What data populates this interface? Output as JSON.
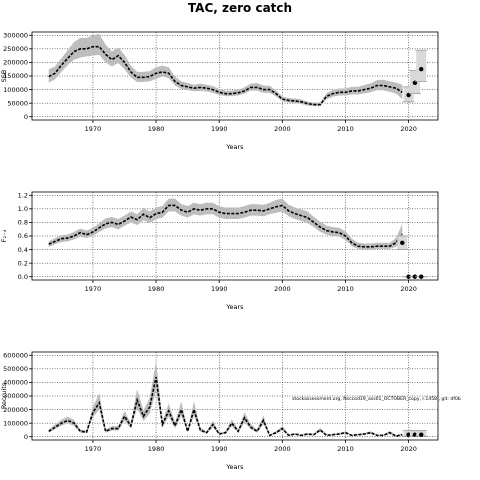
{
  "title": "TAC, zero catch",
  "annotation": "stockassessment.org, Nsccod19_ass01_OCTOBER_copy, r.1458 , git: df0b",
  "chart_data": [
    {
      "type": "line",
      "ylabel": "SSB",
      "xlabel": "Years",
      "xlim": [
        1963,
        2022
      ],
      "ylim": [
        0,
        300000
      ],
      "x_ticks": [
        1970,
        1980,
        1990,
        2000,
        2010,
        2020
      ],
      "y_ticks": [
        0,
        50000,
        100000,
        150000,
        200000,
        250000,
        300000
      ],
      "grid": true,
      "x": [
        1963,
        1964,
        1965,
        1966,
        1967,
        1968,
        1969,
        1970,
        1971,
        1972,
        1973,
        1974,
        1975,
        1976,
        1977,
        1978,
        1979,
        1980,
        1981,
        1982,
        1983,
        1984,
        1985,
        1986,
        1987,
        1988,
        1989,
        1990,
        1991,
        1992,
        1993,
        1994,
        1995,
        1996,
        1997,
        1998,
        1999,
        2000,
        2001,
        2002,
        2003,
        2004,
        2005,
        2006,
        2007,
        2008,
        2009,
        2010,
        2011,
        2012,
        2013,
        2014,
        2015,
        2016,
        2017,
        2018,
        2019
      ],
      "estimate": [
        148000,
        160000,
        190000,
        215000,
        240000,
        250000,
        250000,
        258000,
        258000,
        230000,
        210000,
        225000,
        200000,
        165000,
        145000,
        145000,
        148000,
        160000,
        165000,
        160000,
        130000,
        115000,
        110000,
        105000,
        108000,
        105000,
        100000,
        90000,
        85000,
        85000,
        88000,
        95000,
        108000,
        108000,
        100000,
        100000,
        85000,
        65000,
        60000,
        58000,
        55000,
        48000,
        45000,
        45000,
        75000,
        85000,
        90000,
        90000,
        95000,
        95000,
        100000,
        105000,
        115000,
        115000,
        110000,
        105000,
        90000
      ],
      "lower": [
        125000,
        138000,
        165000,
        190000,
        210000,
        218000,
        222000,
        225000,
        228000,
        200000,
        185000,
        198000,
        175000,
        145000,
        128000,
        128000,
        130000,
        140000,
        148000,
        142000,
        115000,
        102000,
        98000,
        94000,
        95000,
        93000,
        88000,
        80000,
        76000,
        76000,
        78000,
        85000,
        96000,
        96000,
        88000,
        88000,
        75000,
        57000,
        52000,
        50000,
        47000,
        41000,
        39000,
        39000,
        65000,
        74000,
        78000,
        78000,
        82000,
        82000,
        86000,
        90000,
        98000,
        97000,
        92000,
        85000,
        65000
      ],
      "upper": [
        175000,
        185000,
        215000,
        245000,
        275000,
        290000,
        290000,
        300000,
        305000,
        265000,
        240000,
        255000,
        228000,
        188000,
        165000,
        165000,
        168000,
        182000,
        188000,
        182000,
        148000,
        130000,
        124000,
        118000,
        122000,
        118000,
        113000,
        102000,
        96000,
        96000,
        100000,
        108000,
        122000,
        124000,
        115000,
        114000,
        97000,
        74000,
        69000,
        67000,
        64000,
        56000,
        52000,
        52000,
        87000,
        98000,
        104000,
        104000,
        110000,
        110000,
        117000,
        123000,
        135000,
        136000,
        130000,
        126000,
        118000
      ],
      "forecast_x": [
        2020,
        2021,
        2022
      ],
      "forecast_median": [
        80000,
        125000,
        175000
      ],
      "forecast_low": [
        55000,
        85000,
        130000
      ],
      "forecast_high": [
        110000,
        170000,
        245000
      ]
    },
    {
      "type": "line",
      "ylabel": "F₂₋₄",
      "xlabel": "Years",
      "xlim": [
        1963,
        2022
      ],
      "ylim": [
        0,
        1.2
      ],
      "x_ticks": [
        1970,
        1980,
        1990,
        2000,
        2010,
        2020
      ],
      "y_ticks": [
        0.0,
        0.2,
        0.4,
        0.6,
        0.8,
        1.0,
        1.2
      ],
      "grid": true,
      "x": [
        1963,
        1964,
        1965,
        1966,
        1967,
        1968,
        1969,
        1970,
        1971,
        1972,
        1973,
        1974,
        1975,
        1976,
        1977,
        1978,
        1979,
        1980,
        1981,
        1982,
        1983,
        1984,
        1985,
        1986,
        1987,
        1988,
        1989,
        1990,
        1991,
        1992,
        1993,
        1994,
        1995,
        1996,
        1997,
        1998,
        1999,
        2000,
        2001,
        2002,
        2003,
        2004,
        2005,
        2006,
        2007,
        2008,
        2009,
        2010,
        2011,
        2012,
        2013,
        2014,
        2015,
        2016,
        2017,
        2018,
        2019
      ],
      "estimate": [
        0.48,
        0.52,
        0.56,
        0.57,
        0.6,
        0.65,
        0.62,
        0.66,
        0.72,
        0.78,
        0.8,
        0.77,
        0.82,
        0.88,
        0.84,
        0.92,
        0.87,
        0.93,
        0.95,
        1.05,
        1.05,
        0.98,
        0.95,
        1.0,
        0.98,
        1.0,
        1.0,
        0.95,
        0.93,
        0.93,
        0.93,
        0.95,
        0.98,
        0.98,
        0.97,
        1.0,
        1.03,
        1.05,
        0.97,
        0.93,
        0.9,
        0.87,
        0.8,
        0.73,
        0.68,
        0.66,
        0.65,
        0.6,
        0.5,
        0.45,
        0.44,
        0.44,
        0.45,
        0.45,
        0.45,
        0.5,
        0.63
      ],
      "lower": [
        0.44,
        0.48,
        0.51,
        0.52,
        0.55,
        0.59,
        0.57,
        0.6,
        0.66,
        0.71,
        0.73,
        0.7,
        0.75,
        0.8,
        0.76,
        0.83,
        0.79,
        0.85,
        0.87,
        0.96,
        0.96,
        0.9,
        0.87,
        0.92,
        0.9,
        0.92,
        0.92,
        0.87,
        0.85,
        0.85,
        0.85,
        0.87,
        0.9,
        0.9,
        0.89,
        0.92,
        0.94,
        0.96,
        0.89,
        0.85,
        0.82,
        0.79,
        0.73,
        0.66,
        0.62,
        0.6,
        0.59,
        0.54,
        0.45,
        0.41,
        0.4,
        0.4,
        0.41,
        0.41,
        0.41,
        0.44,
        0.5
      ],
      "upper": [
        0.52,
        0.57,
        0.61,
        0.62,
        0.66,
        0.71,
        0.68,
        0.72,
        0.79,
        0.86,
        0.88,
        0.85,
        0.9,
        0.96,
        0.92,
        1.01,
        0.96,
        1.02,
        1.04,
        1.15,
        1.15,
        1.07,
        1.04,
        1.09,
        1.07,
        1.09,
        1.09,
        1.04,
        1.02,
        1.02,
        1.02,
        1.04,
        1.07,
        1.07,
        1.06,
        1.09,
        1.13,
        1.15,
        1.06,
        1.02,
        0.99,
        0.96,
        0.88,
        0.81,
        0.75,
        0.73,
        0.72,
        0.67,
        0.56,
        0.5,
        0.49,
        0.49,
        0.5,
        0.5,
        0.5,
        0.57,
        0.78
      ],
      "forecast_x": [
        2019,
        2020,
        2021,
        2022
      ],
      "forecast_median": [
        0.5,
        0.0,
        0.0,
        0.0
      ],
      "forecast_low": [
        0.4,
        0.0,
        0.0,
        0.0
      ],
      "forecast_high": [
        0.6,
        0.0,
        0.0,
        0.0
      ]
    },
    {
      "type": "line",
      "ylabel": "Recruits",
      "xlabel": "Years",
      "xlim": [
        1963,
        2022
      ],
      "ylim": [
        0,
        600000
      ],
      "x_ticks": [
        1970,
        1980,
        1990,
        2000,
        2010,
        2020
      ],
      "y_ticks": [
        0,
        100000,
        200000,
        300000,
        400000,
        500000,
        600000
      ],
      "y_tick_labels": [
        "0",
        "100000",
        "200000",
        "300000",
        "400000",
        "500000",
        "600000"
      ],
      "grid": true,
      "x": [
        1963,
        1964,
        1965,
        1966,
        1967,
        1968,
        1969,
        1970,
        1971,
        1972,
        1973,
        1974,
        1975,
        1976,
        1977,
        1978,
        1979,
        1980,
        1981,
        1982,
        1983,
        1984,
        1985,
        1986,
        1987,
        1988,
        1989,
        1990,
        1991,
        1992,
        1993,
        1994,
        1995,
        1996,
        1997,
        1998,
        1999,
        2000,
        2001,
        2002,
        2003,
        2004,
        2005,
        2006,
        2007,
        2008,
        2009,
        2010,
        2011,
        2012,
        2013,
        2014,
        2015,
        2016,
        2017,
        2018,
        2019
      ],
      "estimate": [
        40000,
        70000,
        100000,
        120000,
        100000,
        40000,
        35000,
        180000,
        250000,
        40000,
        60000,
        60000,
        150000,
        80000,
        270000,
        150000,
        220000,
        440000,
        90000,
        190000,
        80000,
        200000,
        40000,
        200000,
        50000,
        30000,
        90000,
        20000,
        30000,
        100000,
        40000,
        140000,
        70000,
        40000,
        120000,
        10000,
        30000,
        60000,
        10000,
        20000,
        10000,
        20000,
        15000,
        50000,
        10000,
        15000,
        20000,
        30000,
        10000,
        15000,
        20000,
        30000,
        10000,
        10000,
        30000,
        5000,
        15000
      ],
      "lower": [
        30000,
        55000,
        82000,
        98000,
        80000,
        30000,
        26000,
        145000,
        200000,
        30000,
        46000,
        46000,
        118000,
        62000,
        210000,
        116000,
        170000,
        340000,
        70000,
        148000,
        62000,
        155000,
        30000,
        155000,
        38000,
        22000,
        70000,
        14000,
        22000,
        78000,
        30000,
        108000,
        54000,
        30000,
        92000,
        6000,
        22000,
        46000,
        6000,
        14000,
        6000,
        14000,
        10000,
        38000,
        6000,
        10000,
        14000,
        22000,
        6000,
        10000,
        14000,
        22000,
        6000,
        6000,
        20000,
        2000,
        8000
      ],
      "upper": [
        52000,
        90000,
        125000,
        148000,
        125000,
        52000,
        46000,
        220000,
        320000,
        52000,
        78000,
        78000,
        190000,
        102000,
        350000,
        195000,
        285000,
        560000,
        116000,
        245000,
        104000,
        260000,
        52000,
        260000,
        66000,
        40000,
        118000,
        28000,
        40000,
        128000,
        52000,
        180000,
        92000,
        52000,
        156000,
        16000,
        40000,
        80000,
        16000,
        28000,
        16000,
        28000,
        22000,
        66000,
        16000,
        22000,
        28000,
        40000,
        16000,
        22000,
        28000,
        40000,
        16000,
        16000,
        42000,
        10000,
        26000
      ],
      "forecast_x": [
        2020,
        2021,
        2022
      ],
      "forecast_median": [
        15000,
        15000,
        15000
      ],
      "forecast_low": [
        4000,
        4000,
        4000
      ],
      "forecast_high": [
        45000,
        45000,
        45000
      ]
    }
  ],
  "colors": {
    "band": "#bdbdbd",
    "line": "#000000",
    "forecast_band": "#d9d9d9",
    "grid": "#000000"
  }
}
